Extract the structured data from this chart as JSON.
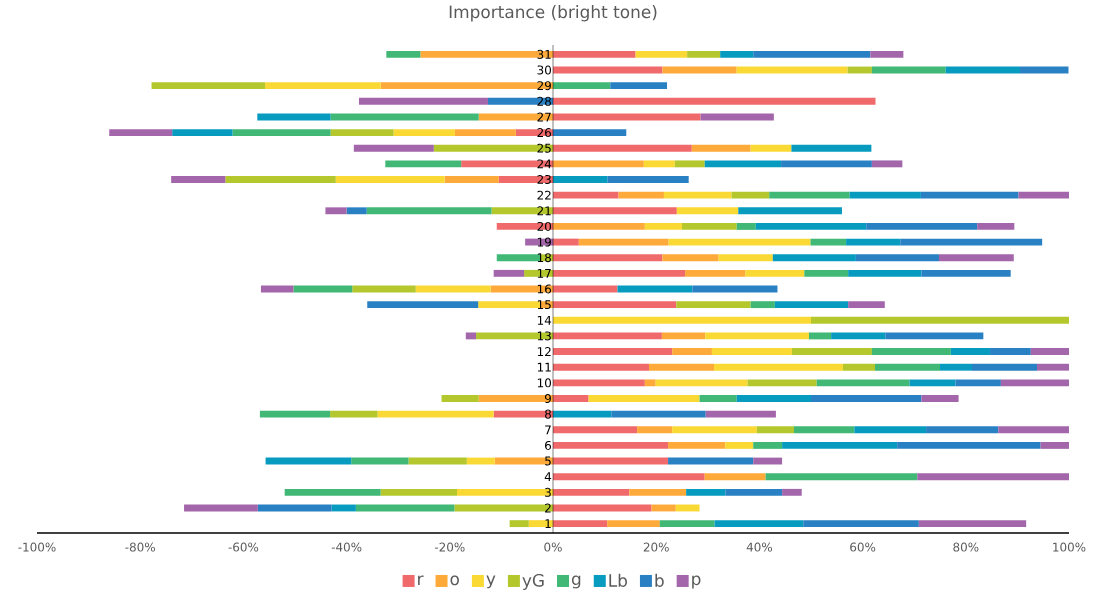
{
  "chart_data": {
    "type": "bar",
    "orientation": "horizontal",
    "stacked": true,
    "title": "Importance (bright tone)",
    "categories": [
      "31",
      "30",
      "29",
      "28",
      "27",
      "26",
      "25",
      "24",
      "23",
      "22",
      "21",
      "20",
      "19",
      "18",
      "17",
      "16",
      "15",
      "14",
      "13",
      "12",
      "11",
      "10",
      "9",
      "8",
      "7",
      "6",
      "5",
      "4",
      "3",
      "2",
      "1"
    ],
    "series": [
      {
        "name": "r",
        "color": "#f06a6c",
        "values": [
          16,
          21.2,
          0,
          62.5,
          28.6,
          -7.2,
          26.9,
          -17.8,
          -10.5,
          12.7,
          24.0,
          -10.9,
          5.0,
          21.2,
          25.6,
          12.5,
          23.9,
          0,
          21.1,
          23.1,
          18.6,
          17.8,
          6.9,
          -11.5,
          16.3,
          22.3,
          22.3,
          29.4,
          14.8,
          19.1,
          10.5
        ]
      },
      {
        "name": "o",
        "color": "#fdaa3a",
        "values": [
          -25.7,
          14.4,
          -33.4,
          0,
          -14.4,
          -11.8,
          11.4,
          17.6,
          -10.5,
          8.8,
          0,
          17.8,
          17.4,
          10.9,
          11.7,
          -12.1,
          -2.4,
          0,
          8.4,
          7.7,
          12.6,
          2.1,
          -14.4,
          0,
          6.8,
          11.1,
          -11.3,
          11.8,
          11.0,
          4.7,
          10.2
        ]
      },
      {
        "name": "y",
        "color": "#fbd935",
        "values": [
          10.0,
          21.5,
          -22.4,
          0,
          0,
          -11.9,
          7.9,
          6.0,
          -21.1,
          13.1,
          11.9,
          7.2,
          27.5,
          10.5,
          11.4,
          -14.5,
          -12.1,
          50,
          20.1,
          15.5,
          25.0,
          17.8,
          21.5,
          -22.5,
          16.4,
          5.4,
          -5.4,
          0,
          -18.6,
          4.6,
          -4.7
        ]
      },
      {
        "name": "yG",
        "color": "#b4c72d",
        "values": [
          6.4,
          4.7,
          -22.0,
          0,
          0,
          -12.2,
          -23.1,
          5.8,
          -21.4,
          7.3,
          -11.9,
          10.6,
          0,
          -2.5,
          -5.6,
          -12.3,
          14.4,
          50,
          -14.9,
          15.5,
          6.2,
          13.4,
          -7.2,
          -9.2,
          7.2,
          0,
          -11.3,
          0,
          -14.8,
          -19.1,
          -3.7
        ]
      },
      {
        "name": "g",
        "color": "#41b876",
        "values": [
          -6.6,
          14.3,
          11.1,
          0,
          -28.7,
          -19.0,
          0,
          -14.7,
          0,
          15.6,
          -24.2,
          3.7,
          6.9,
          -8.4,
          8.5,
          -11.4,
          4.7,
          0,
          4.3,
          15.3,
          12.6,
          18.0,
          7.2,
          -13.6,
          11.7,
          5.6,
          -11.1,
          29.4,
          -18.6,
          -19.1,
          10.6
        ]
      },
      {
        "name": "Lb",
        "color": "#079bbf",
        "values": [
          6.4,
          14.4,
          0,
          0,
          -14.2,
          -11.7,
          15.5,
          14.8,
          10.6,
          13.8,
          20.1,
          21.4,
          10.5,
          16.1,
          14.2,
          14.5,
          14.2,
          0,
          10.5,
          7.6,
          6.2,
          8.9,
          14.4,
          11.3,
          13.9,
          22.3,
          -16.6,
          0,
          7.6,
          -4.7,
          17.2
        ]
      },
      {
        "name": "b",
        "color": "#2980c3",
        "values": [
          22.7,
          9.4,
          11.0,
          -12.6,
          0,
          14.2,
          0,
          17.6,
          15.7,
          18.9,
          -3.9,
          21.5,
          27.5,
          16.1,
          17.3,
          16.5,
          -21.5,
          0,
          19.0,
          7.9,
          12.6,
          8.8,
          21.4,
          18.3,
          14.0,
          27.8,
          16.5,
          0,
          11.0,
          -14.3,
          22.4
        ]
      },
      {
        "name": "p",
        "color": "#a366ab",
        "values": [
          6.4,
          0,
          0,
          -25.0,
          14.2,
          -12.2,
          -15.5,
          5.9,
          -10.5,
          9.8,
          -4.1,
          7.2,
          -5.4,
          14.5,
          -5.9,
          -6.3,
          7.1,
          0,
          -2.0,
          7.4,
          6.2,
          13.2,
          7.2,
          13.6,
          13.7,
          5.5,
          5.6,
          29.4,
          3.8,
          -14.3,
          20.8
        ]
      }
    ],
    "xlim": [
      -100,
      100
    ],
    "xticks": [
      {
        "value": -100,
        "label": "-100%"
      },
      {
        "value": -80,
        "label": "-80%"
      },
      {
        "value": -60,
        "label": "-60%"
      },
      {
        "value": -40,
        "label": "-40%"
      },
      {
        "value": -20,
        "label": "-20%"
      },
      {
        "value": 0,
        "label": "0%"
      },
      {
        "value": 20,
        "label": "20%"
      },
      {
        "value": 40,
        "label": "40%"
      },
      {
        "value": 60,
        "label": "60%"
      },
      {
        "value": 80,
        "label": "80%"
      },
      {
        "value": 100,
        "label": "100%"
      }
    ],
    "legend": "bottom"
  }
}
